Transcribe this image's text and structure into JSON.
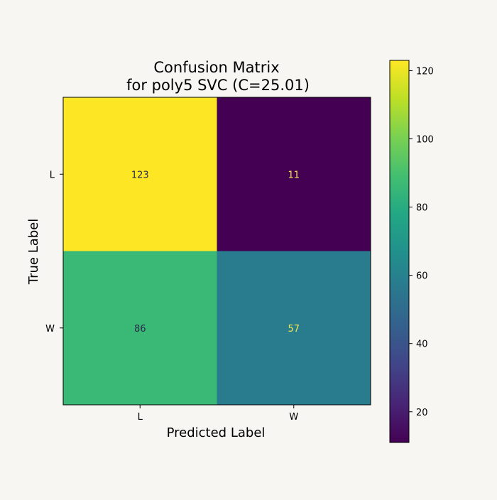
{
  "chart_data": {
    "type": "heatmap",
    "title_lines": [
      "Confusion Matrix",
      "for poly5 SVC (C=25.01)"
    ],
    "xlabel": "Predicted Label",
    "ylabel": "True Label",
    "x_categories": [
      "L",
      "W"
    ],
    "y_categories": [
      "L",
      "W"
    ],
    "values": [
      [
        123,
        11
      ],
      [
        86,
        57
      ]
    ],
    "colormap": "viridis",
    "colorbar": {
      "range": [
        11,
        123
      ],
      "ticks": [
        20,
        40,
        60,
        80,
        100,
        120
      ]
    },
    "colors": {
      "background": "#f7f6f3",
      "cell_text_dark": "#2b2b4a",
      "cell_text_light": "#f5e84a"
    }
  }
}
